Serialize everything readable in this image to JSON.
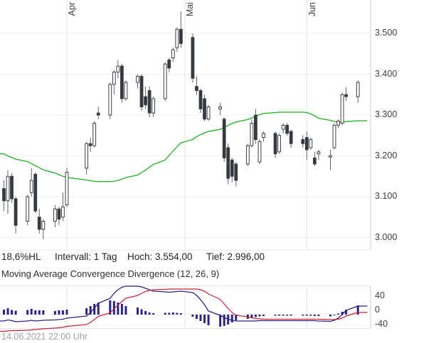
{
  "info_bar": {
    "range_pct": "18,6%HL",
    "interval": "Intervall: 1 Tag",
    "high": "Hoch: 3.554,00",
    "low": "Tief: 2.996,00"
  },
  "indicator_title": "Moving Average Convergence Divergence (12, 26, 9)",
  "timestamp": "14.06.2021 22:00 Uhr",
  "colors": {
    "ma_line": "#2cb52c",
    "macd_line": "#2c2386",
    "signal_line": "#cf2030",
    "histogram": "#2c2386",
    "candle_down_fill": "#34393e",
    "candle_up_fill": "#ffffff",
    "candle_border": "#3c4146",
    "wick": "#5f6468",
    "grid": "#ececec",
    "grid_month": "#e6e6e6",
    "axis_line": "#cccccc",
    "panel_border": "#e3e3e3"
  },
  "chart_data": [
    {
      "type": "candlestick",
      "title": "",
      "interval": "1 Tag",
      "high": 3554.0,
      "low": 2996.0,
      "x_ticks": [
        {
          "label": "Apr",
          "date": "2021-04-01"
        },
        {
          "label": "Mai",
          "date": "2021-05-01"
        },
        {
          "label": "Jun",
          "date": "2021-06-01"
        }
      ],
      "y_ticks": [
        {
          "price": 3.5,
          "label": "3.500"
        },
        {
          "price": 3.4,
          "label": "3.400"
        },
        {
          "price": 3.3,
          "label": "3.300"
        },
        {
          "price": 3.2,
          "label": "3.200"
        },
        {
          "price": 3.1,
          "label": "3.100"
        },
        {
          "price": 3.0,
          "label": "3.000"
        }
      ],
      "candles": [
        [
          "2021-03-16",
          3.12,
          3.14,
          3.065,
          3.09
        ],
        [
          "2021-03-17",
          3.09,
          3.165,
          3.058,
          3.15
        ],
        [
          "2021-03-18",
          3.15,
          3.158,
          3.085,
          3.095
        ],
        [
          "2021-03-19",
          3.095,
          3.1,
          3.01,
          3.03
        ],
        [
          "2021-03-22",
          3.04,
          3.105,
          3.03,
          3.1
        ],
        [
          "2021-03-23",
          3.11,
          3.17,
          3.1,
          3.14
        ],
        [
          "2021-03-24",
          3.155,
          3.16,
          3.06,
          3.065
        ],
        [
          "2021-03-25",
          3.05,
          3.07,
          3.01,
          3.02
        ],
        [
          "2021-03-26",
          3.02,
          3.045,
          2.996,
          3.04
        ],
        [
          "2021-03-29",
          3.04,
          3.08,
          3.025,
          3.07
        ],
        [
          "2021-03-30",
          3.07,
          3.075,
          3.03,
          3.045
        ],
        [
          "2021-03-31",
          3.05,
          3.11,
          3.04,
          3.075
        ],
        [
          "2021-04-01",
          3.08,
          3.17,
          3.075,
          3.16
        ],
        [
          "2021-04-06",
          3.17,
          3.235,
          3.155,
          3.23
        ],
        [
          "2021-04-07",
          3.23,
          3.245,
          3.21,
          3.225
        ],
        [
          "2021-04-08",
          3.225,
          3.285,
          3.22,
          3.28
        ],
        [
          "2021-04-09",
          3.305,
          3.32,
          3.29,
          3.3
        ],
        [
          "2021-04-12",
          3.3,
          3.38,
          3.29,
          3.375
        ],
        [
          "2021-04-13",
          3.375,
          3.41,
          3.35,
          3.405
        ],
        [
          "2021-04-14",
          3.405,
          3.435,
          3.39,
          3.42
        ],
        [
          "2021-04-15",
          3.42,
          3.425,
          3.33,
          3.34
        ],
        [
          "2021-04-16",
          3.34,
          3.385,
          3.335,
          3.38
        ],
        [
          "2021-04-19",
          3.38,
          3.4,
          3.365,
          3.395
        ],
        [
          "2021-04-20",
          3.395,
          3.4,
          3.31,
          3.32
        ],
        [
          "2021-04-21",
          3.345,
          3.37,
          3.315,
          3.325
        ],
        [
          "2021-04-22",
          3.36,
          3.37,
          3.295,
          3.305
        ],
        [
          "2021-04-23",
          3.305,
          3.345,
          3.295,
          3.34
        ],
        [
          "2021-04-26",
          3.34,
          3.43,
          3.335,
          3.425
        ],
        [
          "2021-04-27",
          3.435,
          3.44,
          3.405,
          3.415
        ],
        [
          "2021-04-28",
          3.44,
          3.465,
          3.43,
          3.46
        ],
        [
          "2021-04-29",
          3.465,
          3.515,
          3.455,
          3.51
        ],
        [
          "2021-04-30",
          3.51,
          3.554,
          3.465,
          3.475
        ],
        [
          "2021-05-03",
          3.49,
          3.5,
          3.38,
          3.39
        ],
        [
          "2021-05-04",
          3.37,
          3.395,
          3.35,
          3.36
        ],
        [
          "2021-05-05",
          3.36,
          3.365,
          3.305,
          3.315
        ],
        [
          "2021-05-06",
          3.34,
          3.35,
          3.285,
          3.29
        ],
        [
          "2021-05-07",
          3.29,
          3.325,
          3.285,
          3.32
        ],
        [
          "2021-05-10",
          3.315,
          3.33,
          3.3,
          3.32
        ],
        [
          "2021-05-11",
          3.29,
          3.295,
          3.185,
          3.195
        ],
        [
          "2021-05-12",
          3.22,
          3.23,
          3.13,
          3.145
        ],
        [
          "2021-05-13",
          3.19,
          3.195,
          3.135,
          3.15
        ],
        [
          "2021-05-14",
          3.18,
          3.185,
          3.125,
          3.14
        ],
        [
          "2021-05-17",
          3.18,
          3.23,
          3.175,
          3.225
        ],
        [
          "2021-05-18",
          3.225,
          3.29,
          3.22,
          3.28
        ],
        [
          "2021-05-19",
          3.3,
          3.315,
          3.23,
          3.24
        ],
        [
          "2021-05-20",
          3.185,
          3.24,
          3.18,
          3.235
        ],
        [
          "2021-05-21",
          3.245,
          3.26,
          3.235,
          3.255
        ],
        [
          "2021-05-24",
          3.255,
          3.26,
          3.195,
          3.205
        ],
        [
          "2021-05-25",
          3.21,
          3.255,
          3.205,
          3.25
        ],
        [
          "2021-05-26",
          3.265,
          3.28,
          3.255,
          3.275
        ],
        [
          "2021-05-27",
          3.275,
          3.28,
          3.25,
          3.255
        ],
        [
          "2021-05-28",
          3.26,
          3.265,
          3.22,
          3.23
        ],
        [
          "2021-05-31",
          3.24,
          3.25,
          3.22,
          3.23
        ],
        [
          "2021-06-01",
          3.245,
          3.26,
          3.19,
          3.215
        ],
        [
          "2021-06-02",
          3.22,
          3.245,
          3.215,
          3.24
        ],
        [
          "2021-06-03",
          3.195,
          3.21,
          3.175,
          3.18
        ],
        [
          "2021-06-04",
          3.205,
          3.215,
          3.19,
          3.21
        ],
        [
          "2021-06-07",
          3.2,
          3.215,
          3.165,
          3.2
        ],
        [
          "2021-06-08",
          3.22,
          3.28,
          3.215,
          3.275
        ],
        [
          "2021-06-09",
          3.275,
          3.29,
          3.268,
          3.285
        ],
        [
          "2021-06-10",
          3.28,
          3.355,
          3.275,
          3.35
        ],
        [
          "2021-06-11",
          3.35,
          3.368,
          3.335,
          3.345
        ],
        [
          "2021-06-14",
          3.345,
          3.385,
          3.33,
          3.38
        ]
      ],
      "ma_line": {
        "name": "moving-average",
        "values": [
          3.205,
          3.2,
          3.196,
          3.192,
          3.186,
          3.181,
          3.176,
          3.171,
          3.166,
          3.158,
          3.154,
          3.15,
          3.147,
          3.141,
          3.139,
          3.138,
          3.137,
          3.137,
          3.138,
          3.14,
          3.143,
          3.147,
          3.153,
          3.159,
          3.165,
          3.172,
          3.179,
          3.19,
          3.201,
          3.212,
          3.222,
          3.232,
          3.24,
          3.247,
          3.252,
          3.256,
          3.26,
          3.265,
          3.27,
          3.275,
          3.279,
          3.283,
          3.289,
          3.293,
          3.297,
          3.301,
          3.304,
          3.306,
          3.307,
          3.307,
          3.307,
          3.307,
          3.307,
          3.306,
          3.303,
          3.298,
          3.292,
          3.287,
          3.284,
          3.283,
          3.283,
          3.284,
          3.286
        ]
      }
    },
    {
      "type": "macd",
      "title": "Moving Average Convergence Divergence (12, 26, 9)",
      "params": [
        12,
        26,
        9
      ],
      "y_ticks": [
        {
          "value": 40,
          "label": "40"
        },
        {
          "value": 0,
          "label": "0"
        },
        {
          "value": -40,
          "label": "-40"
        }
      ],
      "macd_line": [
        -18,
        -15,
        -17,
        -20,
        -18,
        -16,
        -18,
        -17,
        -16,
        -15,
        -14,
        -13,
        -10,
        -4,
        6,
        18,
        32,
        46,
        60,
        70,
        77,
        80,
        80,
        78,
        74,
        70,
        66,
        64,
        63,
        64,
        65,
        66,
        62,
        54,
        42,
        28,
        10,
        -2,
        -8,
        -13,
        -16,
        -18,
        -18,
        -18,
        -18,
        -17,
        -17,
        -17,
        -17,
        -17,
        -17,
        -17,
        -17,
        -17,
        -17,
        -17,
        -18,
        -19,
        -16,
        -10,
        0,
        12,
        24
      ],
      "signal_line": [
        -47,
        -46,
        -45,
        -45,
        -44,
        -43,
        -42,
        -41,
        -40,
        -38,
        -37,
        -36,
        -33,
        -28,
        -22,
        -14,
        -5,
        5,
        16,
        27,
        37,
        46,
        54,
        60,
        65,
        68,
        70,
        71,
        72,
        72,
        72,
        72,
        72,
        72,
        70,
        66,
        58,
        43,
        30,
        17,
        6,
        -2,
        -6,
        -9,
        -11,
        -12,
        -13,
        -13,
        -13,
        -13,
        -13,
        -13,
        -13,
        -13,
        -13,
        -13,
        -13,
        -14,
        -14,
        -13,
        -10,
        -4,
        6
      ],
      "histogram": [
        14,
        18,
        13,
        11,
        13,
        16,
        12,
        12,
        12,
        10,
        12,
        12,
        14,
        18,
        24,
        30,
        34,
        40,
        38,
        34,
        30,
        24,
        20,
        15,
        10,
        6,
        4,
        5,
        5,
        6,
        5,
        4,
        -6,
        -12,
        -18,
        -24,
        -30,
        -34,
        -32,
        -28,
        -22,
        -16,
        -12,
        -9,
        -7,
        -5,
        -4,
        -3,
        -3,
        -3,
        -3,
        -3,
        -3,
        -3,
        -3,
        -4,
        -4,
        -5,
        -2,
        3,
        8,
        14,
        26
      ]
    }
  ]
}
